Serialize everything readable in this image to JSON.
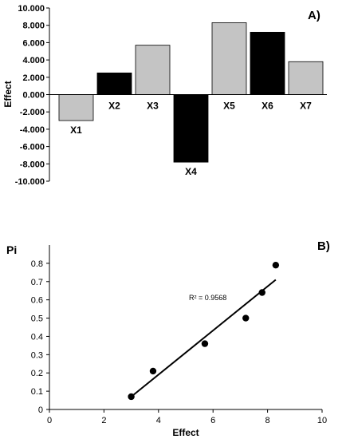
{
  "chart_data": [
    {
      "type": "bar",
      "panel_label": "A)",
      "title": "",
      "xlabel": "",
      "ylabel": "Effect",
      "ylim": [
        -10,
        10
      ],
      "yticks": [
        -10,
        -8,
        -6,
        -4,
        -2,
        0,
        2,
        4,
        6,
        8,
        10
      ],
      "ytick_labels": [
        "-10.000",
        "-8.000",
        "-6.000",
        "-4.000",
        "-2.000",
        "0.000",
        "2.000",
        "4.000",
        "6.000",
        "8.000",
        "10.000"
      ],
      "categories": [
        "X1",
        "X2",
        "X3",
        "X4",
        "X5",
        "X6",
        "X7"
      ],
      "values": [
        -3.0,
        2.5,
        5.7,
        -7.8,
        8.3,
        7.2,
        3.8
      ],
      "bar_colors": [
        "#c4c4c4",
        "#000000",
        "#c4c4c4",
        "#000000",
        "#c4c4c4",
        "#000000",
        "#c4c4c4"
      ],
      "grid": false,
      "legend": "none"
    },
    {
      "type": "scatter",
      "panel_label": "B)",
      "title": "",
      "xlabel": "Effect",
      "ylabel": "Pi",
      "xlim": [
        0,
        10
      ],
      "ylim": [
        0,
        0.9
      ],
      "xticks": [
        0,
        2,
        4,
        6,
        8,
        10
      ],
      "yticks": [
        0,
        0.1,
        0.2,
        0.3,
        0.4,
        0.5,
        0.6,
        0.7,
        0.8
      ],
      "xtick_labels": [
        "0",
        "2",
        "4",
        "6",
        "8",
        "10"
      ],
      "ytick_labels": [
        "0",
        "0.1",
        "0.2",
        "0.3",
        "0.4",
        "0.5",
        "0.6",
        "0.7",
        "0.8"
      ],
      "points": [
        {
          "x": 3.0,
          "y": 0.07
        },
        {
          "x": 3.8,
          "y": 0.21
        },
        {
          "x": 5.7,
          "y": 0.36
        },
        {
          "x": 7.2,
          "y": 0.5
        },
        {
          "x": 7.8,
          "y": 0.64
        },
        {
          "x": 8.3,
          "y": 0.79
        }
      ],
      "trendline": {
        "x": [
          3.0,
          8.3
        ],
        "y": [
          0.07,
          0.71
        ]
      },
      "annotation": "R² = 0.9568",
      "point_color": "#000000",
      "grid": false,
      "legend": "none"
    }
  ]
}
